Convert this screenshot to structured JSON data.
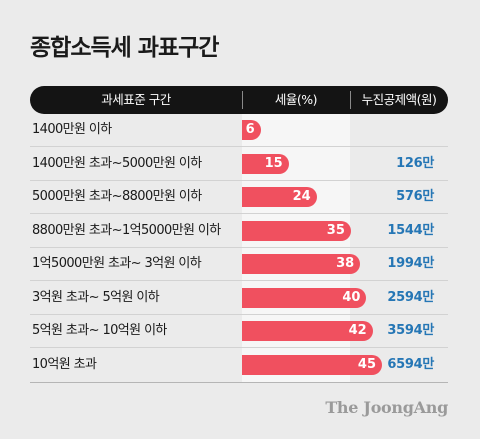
{
  "title": "종합소득세 과표구간",
  "header": {
    "col1": "과세표준 구간",
    "col2": "세율(%)",
    "col3": "누진공제액(원)"
  },
  "rows": [
    {
      "label": "1400만원 이하",
      "rate": "6",
      "deduction": ""
    },
    {
      "label": "1400만원 초과~5000만원 이하",
      "rate": "15",
      "deduction": "126만"
    },
    {
      "label": "5000만원 초과~8800만원 이하",
      "rate": "24",
      "deduction": "576만"
    },
    {
      "label": "8800만원 초과~1억5000만원 이하",
      "rate": "35",
      "deduction": "1544만"
    },
    {
      "label": "1억5000만원 초과~ 3억원 이하",
      "rate": "38",
      "deduction": "1994만"
    },
    {
      "label": "3억원 초과~ 5억원 이하",
      "rate": "40",
      "deduction": "2594만"
    },
    {
      "label": "5억원 초과~ 10억원 이하",
      "rate": "42",
      "deduction": "3594만"
    },
    {
      "label": "10억원 초과",
      "rate": "45",
      "deduction": "6594만"
    }
  ],
  "chart_data": {
    "type": "bar",
    "categories": [
      "1400만원 이하",
      "1400만원 초과~5000만원 이하",
      "5000만원 초과~8800만원 이하",
      "8800만원 초과~1억5000만원 이하",
      "1억5000만원 초과~ 3억원 이하",
      "3억원 초과~ 5억원 이하",
      "5억원 초과~ 10억원 이하",
      "10억원 초과"
    ],
    "values": [
      6,
      15,
      24,
      35,
      38,
      40,
      42,
      45
    ],
    "deductions": [
      "",
      "126만",
      "576만",
      "1544만",
      "1994만",
      "2594만",
      "3594만",
      "6594만"
    ],
    "ylabel": "세율(%)",
    "bar_color": "#f0505f"
  },
  "logo": "The JoongAng",
  "colors": {
    "bar": "#f0505f",
    "deduction_text": "#2576b5",
    "header_bg": "#141414",
    "background": "#ebebeb"
  }
}
